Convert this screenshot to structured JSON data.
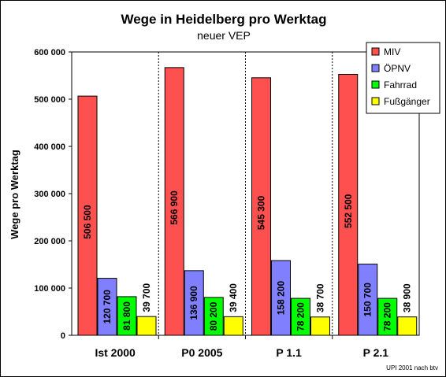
{
  "chart_data": {
    "type": "bar",
    "title": "Wege in Heidelberg pro Werktag",
    "subtitle": "neuer VEP",
    "ylabel": "Wege pro Werktag",
    "ylim": [
      0,
      600000
    ],
    "yticks": [
      "0",
      "100 000",
      "200 000",
      "300 000",
      "400 000",
      "500 000",
      "600 000"
    ],
    "categories": [
      "Ist 2000",
      "P0 2005",
      "P 1.1",
      "P 2.1"
    ],
    "series": [
      {
        "name": "MIV",
        "color": "#ff5050",
        "values": [
          506500,
          566900,
          545300,
          552500
        ],
        "labels": [
          "506 500",
          "566 900",
          "545 300",
          "552 500"
        ]
      },
      {
        "name": "ÖPNV",
        "color": "#8080ff",
        "values": [
          120700,
          136900,
          158200,
          150700
        ],
        "labels": [
          "120 700",
          "136 900",
          "158 200",
          "150 700"
        ]
      },
      {
        "name": "Fahrrad",
        "color": "#00ff00",
        "values": [
          81800,
          80200,
          78200,
          78200
        ],
        "labels": [
          "81 800",
          "80 200",
          "78 200",
          "78 200"
        ]
      },
      {
        "name": "Fußgänger",
        "color": "#ffff00",
        "values": [
          39700,
          39400,
          38700,
          38900
        ],
        "labels": [
          "39 700",
          "39 400",
          "38 700",
          "38 900"
        ]
      }
    ],
    "legend_position": "top-right",
    "grid": "vertical dashed separators between categories",
    "credit": "UPI 2001 nach btv"
  }
}
